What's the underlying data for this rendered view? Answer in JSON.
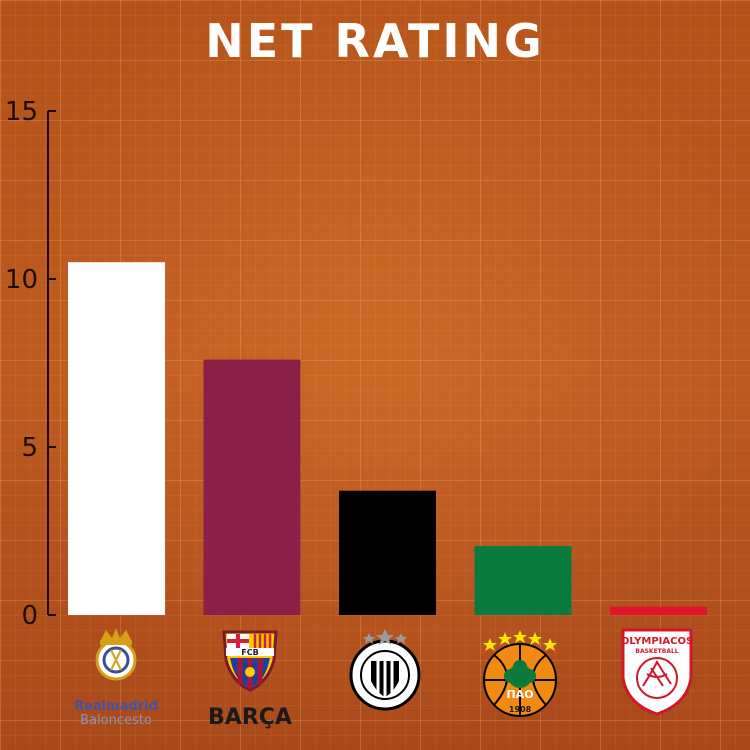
{
  "title": "NET RATING",
  "chart_data": {
    "type": "bar",
    "categories": [
      "Real Madrid",
      "Barça",
      "Partizan",
      "Panathinaikos",
      "Olympiacos"
    ],
    "values": [
      10.5,
      7.6,
      3.7,
      2.05,
      0.25
    ],
    "ylim": [
      0,
      15
    ],
    "yticks": [
      0,
      5,
      10,
      15
    ],
    "ytick_labels": [
      "0",
      "5",
      "10",
      "15"
    ],
    "grid": true,
    "legend": "none",
    "bar_colors": [
      "#ffffff",
      "#8a1f48",
      "#000000",
      "#0b7a3e",
      "#e0142b"
    ]
  },
  "logos": [
    {
      "icon": "real-madrid-crest-icon",
      "lines": [
        "Realmadrid",
        "Baloncesto"
      ]
    },
    {
      "icon": "fc-barcelona-crest-icon",
      "lines": [
        "BARÇA"
      ],
      "crest_letters": "FCB"
    },
    {
      "icon": "partizan-crest-icon",
      "lines": []
    },
    {
      "icon": "panathinaikos-crest-icon",
      "lines": [],
      "crest_letters": "ΠΑΟ",
      "year": "1908"
    },
    {
      "icon": "olympiacos-crest-icon",
      "lines": [],
      "crest_letters": "OLYMPIACOS",
      "sub": "BASKETBALL"
    }
  ]
}
